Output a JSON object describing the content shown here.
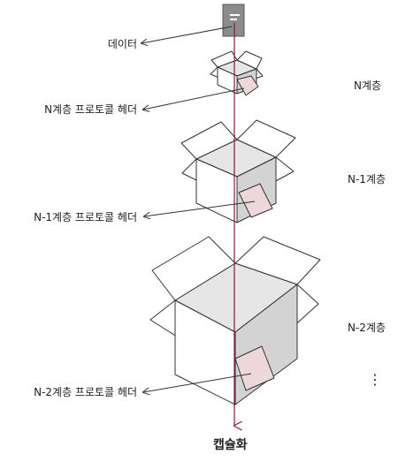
{
  "labels": {
    "data": "데이터",
    "n_header": "N계층 프로토콜 헤더",
    "n1_header": "N-1계층 프로토콜 헤더",
    "n2_header": "N-2계층 프로토콜 헤더",
    "layer_n": "N계층",
    "layer_n1": "N-1계층",
    "layer_n2": "N-2계층",
    "continuation": "⋮",
    "bottom": "캡슐화"
  },
  "colors": {
    "arrow": "#8b1a2b",
    "box_inner": "#e6e6e6",
    "box_side": "#d3d3d3",
    "box_front": "#ffffff",
    "tag": "#ecd7da",
    "document": "#8c8c8c"
  },
  "icons": {
    "document": "document-icon",
    "box": "box-icon",
    "tag": "header-tag-icon"
  }
}
